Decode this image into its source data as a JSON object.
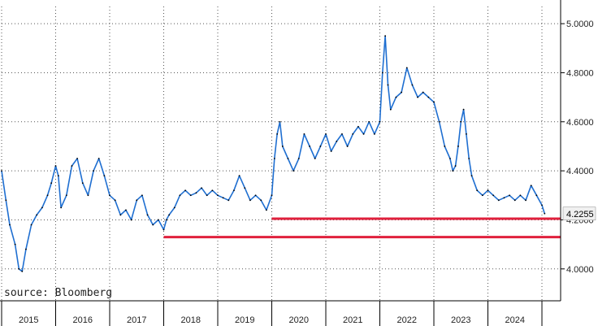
{
  "chart_data": {
    "type": "line",
    "title": "",
    "xlabel": "",
    "ylabel": "",
    "source_note": "source: Bloomberg",
    "x_tick_labels": [
      "2015",
      "2016",
      "2017",
      "2018",
      "2019",
      "2020",
      "2021",
      "2022",
      "2023",
      "2024"
    ],
    "y_tick_labels": [
      "4.0000",
      "4.2000",
      "4.4000",
      "4.6000",
      "4.8000",
      "5.0000"
    ],
    "y_ticks": [
      4.0,
      4.2,
      4.4,
      4.6,
      4.8,
      5.0
    ],
    "ylim": [
      3.87,
      5.07
    ],
    "xlim": [
      2015.0,
      2025.0
    ],
    "grid": "dotted",
    "y_axis_side": "right",
    "last_value_label": "4.2255",
    "series": [
      {
        "color": "#1f6fd1",
        "points": [
          [
            2015.0,
            4.4
          ],
          [
            2015.08,
            4.28
          ],
          [
            2015.15,
            4.18
          ],
          [
            2015.25,
            4.1
          ],
          [
            2015.32,
            4.0
          ],
          [
            2015.38,
            3.99
          ],
          [
            2015.45,
            4.08
          ],
          [
            2015.55,
            4.18
          ],
          [
            2015.65,
            4.22
          ],
          [
            2015.75,
            4.25
          ],
          [
            2015.85,
            4.3
          ],
          [
            2015.92,
            4.35
          ],
          [
            2016.0,
            4.42
          ],
          [
            2016.05,
            4.38
          ],
          [
            2016.1,
            4.25
          ],
          [
            2016.2,
            4.3
          ],
          [
            2016.3,
            4.42
          ],
          [
            2016.4,
            4.45
          ],
          [
            2016.5,
            4.35
          ],
          [
            2016.6,
            4.3
          ],
          [
            2016.7,
            4.4
          ],
          [
            2016.8,
            4.45
          ],
          [
            2016.9,
            4.38
          ],
          [
            2017.0,
            4.3
          ],
          [
            2017.1,
            4.28
          ],
          [
            2017.2,
            4.22
          ],
          [
            2017.3,
            4.24
          ],
          [
            2017.4,
            4.2
          ],
          [
            2017.5,
            4.28
          ],
          [
            2017.6,
            4.3
          ],
          [
            2017.7,
            4.22
          ],
          [
            2017.8,
            4.18
          ],
          [
            2017.9,
            4.2
          ],
          [
            2018.0,
            4.16
          ],
          [
            2018.05,
            4.2
          ],
          [
            2018.1,
            4.22
          ],
          [
            2018.2,
            4.25
          ],
          [
            2018.3,
            4.3
          ],
          [
            2018.4,
            4.32
          ],
          [
            2018.5,
            4.3
          ],
          [
            2018.6,
            4.31
          ],
          [
            2018.7,
            4.33
          ],
          [
            2018.8,
            4.3
          ],
          [
            2018.9,
            4.32
          ],
          [
            2019.0,
            4.3
          ],
          [
            2019.1,
            4.29
          ],
          [
            2019.2,
            4.28
          ],
          [
            2019.3,
            4.32
          ],
          [
            2019.4,
            4.38
          ],
          [
            2019.5,
            4.33
          ],
          [
            2019.6,
            4.28
          ],
          [
            2019.7,
            4.3
          ],
          [
            2019.8,
            4.28
          ],
          [
            2019.9,
            4.24
          ],
          [
            2020.0,
            4.3
          ],
          [
            2020.05,
            4.45
          ],
          [
            2020.1,
            4.55
          ],
          [
            2020.15,
            4.6
          ],
          [
            2020.2,
            4.5
          ],
          [
            2020.3,
            4.45
          ],
          [
            2020.4,
            4.4
          ],
          [
            2020.5,
            4.45
          ],
          [
            2020.6,
            4.55
          ],
          [
            2020.7,
            4.5
          ],
          [
            2020.8,
            4.45
          ],
          [
            2020.9,
            4.5
          ],
          [
            2021.0,
            4.55
          ],
          [
            2021.1,
            4.48
          ],
          [
            2021.2,
            4.52
          ],
          [
            2021.3,
            4.55
          ],
          [
            2021.4,
            4.5
          ],
          [
            2021.5,
            4.55
          ],
          [
            2021.6,
            4.58
          ],
          [
            2021.7,
            4.55
          ],
          [
            2021.8,
            4.6
          ],
          [
            2021.9,
            4.55
          ],
          [
            2022.0,
            4.6
          ],
          [
            2022.05,
            4.8
          ],
          [
            2022.1,
            4.95
          ],
          [
            2022.15,
            4.75
          ],
          [
            2022.2,
            4.65
          ],
          [
            2022.3,
            4.7
          ],
          [
            2022.4,
            4.72
          ],
          [
            2022.5,
            4.82
          ],
          [
            2022.6,
            4.75
          ],
          [
            2022.7,
            4.7
          ],
          [
            2022.8,
            4.72
          ],
          [
            2022.9,
            4.7
          ],
          [
            2023.0,
            4.68
          ],
          [
            2023.1,
            4.6
          ],
          [
            2023.2,
            4.5
          ],
          [
            2023.3,
            4.45
          ],
          [
            2023.35,
            4.4
          ],
          [
            2023.4,
            4.42
          ],
          [
            2023.45,
            4.5
          ],
          [
            2023.5,
            4.6
          ],
          [
            2023.55,
            4.65
          ],
          [
            2023.6,
            4.55
          ],
          [
            2023.65,
            4.45
          ],
          [
            2023.7,
            4.38
          ],
          [
            2023.8,
            4.32
          ],
          [
            2023.9,
            4.3
          ],
          [
            2024.0,
            4.32
          ],
          [
            2024.1,
            4.3
          ],
          [
            2024.2,
            4.28
          ],
          [
            2024.3,
            4.29
          ],
          [
            2024.4,
            4.3
          ],
          [
            2024.5,
            4.28
          ],
          [
            2024.6,
            4.3
          ],
          [
            2024.7,
            4.28
          ],
          [
            2024.8,
            4.34
          ],
          [
            2024.9,
            4.3
          ],
          [
            2025.0,
            4.26
          ],
          [
            2025.05,
            4.2255
          ]
        ]
      }
    ],
    "horizontal_lines": [
      {
        "y": 4.205,
        "x_start": 2020.0,
        "x_end": 2025.5,
        "color": "#e0203c"
      },
      {
        "y": 4.13,
        "x_start": 2018.0,
        "x_end": 2025.5,
        "color": "#e0203c"
      }
    ],
    "colors": {
      "line": "#1f6fd1",
      "support_line": "#e0203c",
      "grid": "#555555",
      "axis": "#000000"
    }
  }
}
